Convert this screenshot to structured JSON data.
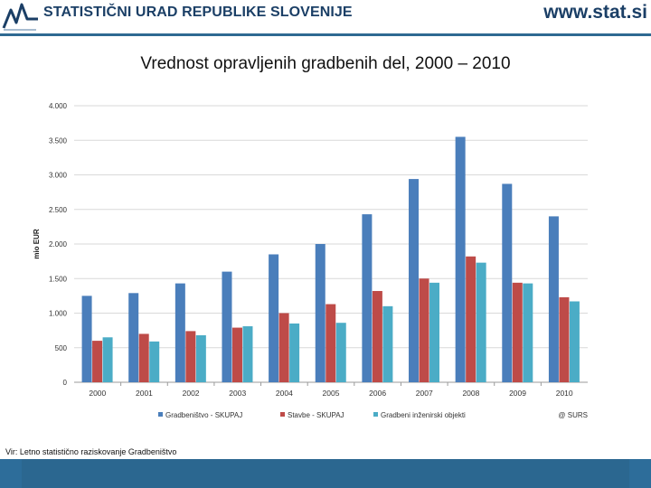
{
  "header": {
    "org_name": "STATISTIČNI URAD REPUBLIKE SLOVENIJE",
    "url": "www.stat.si",
    "logo_icon": "surs-logo-icon"
  },
  "slide": {
    "title": "Vrednost opravljenih gradbenih del, 2000 – 2010",
    "source": "Vir: Letno statistično raziskovanje Gradbeništvo"
  },
  "colors": {
    "brand": "#1b3f66",
    "bar": "#2b6790"
  },
  "chart_data": {
    "type": "bar",
    "title": "",
    "xlabel": "",
    "ylabel": "mio EUR",
    "ylim": [
      0,
      4000
    ],
    "yticks": [
      0,
      500,
      1000,
      1500,
      2000,
      2500,
      3000,
      3500,
      4000
    ],
    "ytick_labels": [
      "0",
      "500",
      "1.000",
      "1.500",
      "2.000",
      "2.500",
      "3.000",
      "3.500",
      "4.000"
    ],
    "grid": true,
    "legend_position": "bottom",
    "credit": "@ SURS",
    "categories": [
      "2000",
      "2001",
      "2002",
      "2003",
      "2004",
      "2005",
      "2006",
      "2007",
      "2008",
      "2009",
      "2010"
    ],
    "series": [
      {
        "name": "Gradbeništvo - SKUPAJ",
        "color": "#4a7ebb",
        "values": [
          1250,
          1290,
          1430,
          1600,
          1850,
          2000,
          2430,
          2940,
          3550,
          2870,
          2400
        ]
      },
      {
        "name": "Stavbe - SKUPAJ",
        "color": "#be4b48",
        "values": [
          600,
          700,
          740,
          790,
          1000,
          1130,
          1320,
          1500,
          1820,
          1440,
          1230
        ]
      },
      {
        "name": "Gradbeni inženirski objekti",
        "color": "#4bacc6",
        "values": [
          650,
          590,
          680,
          810,
          850,
          860,
          1100,
          1440,
          1730,
          1430,
          1170
        ]
      }
    ]
  }
}
